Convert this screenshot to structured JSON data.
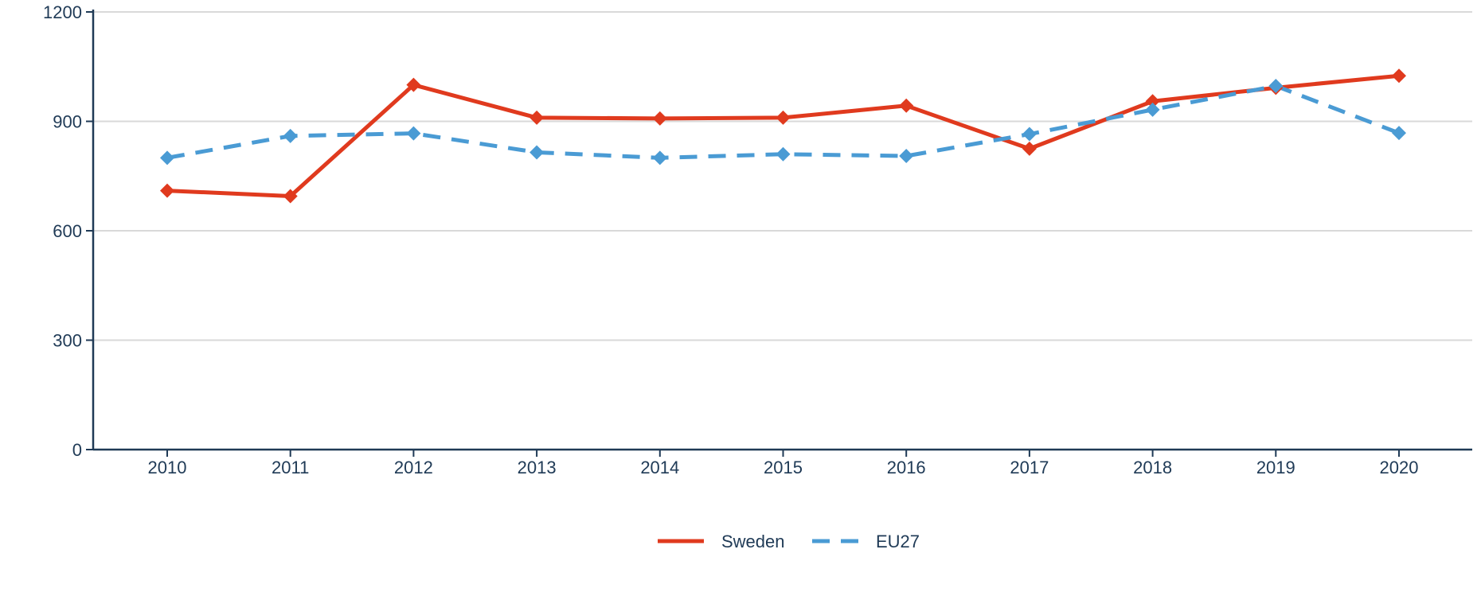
{
  "chart_data": {
    "type": "line",
    "title": "",
    "xlabel": "",
    "ylabel": "",
    "categories": [
      "2010",
      "2011",
      "2012",
      "2013",
      "2014",
      "2015",
      "2016",
      "2017",
      "2018",
      "2019",
      "2020"
    ],
    "ylim": [
      0,
      1200
    ],
    "yticks": [
      0,
      300,
      600,
      900,
      1200
    ],
    "grid": true,
    "legend_position": "bottom-center",
    "series": [
      {
        "name": "Sweden",
        "color": "#e03a1e",
        "line_style": "solid",
        "marker": "diamond",
        "values": [
          710,
          695,
          1000,
          910,
          908,
          910,
          943,
          825,
          955,
          992,
          1025
        ]
      },
      {
        "name": "EU27",
        "color": "#4a9bd4",
        "line_style": "dashed",
        "marker": "diamond",
        "values": [
          800,
          860,
          867,
          815,
          800,
          810,
          805,
          865,
          932,
          997,
          868
        ]
      }
    ]
  }
}
